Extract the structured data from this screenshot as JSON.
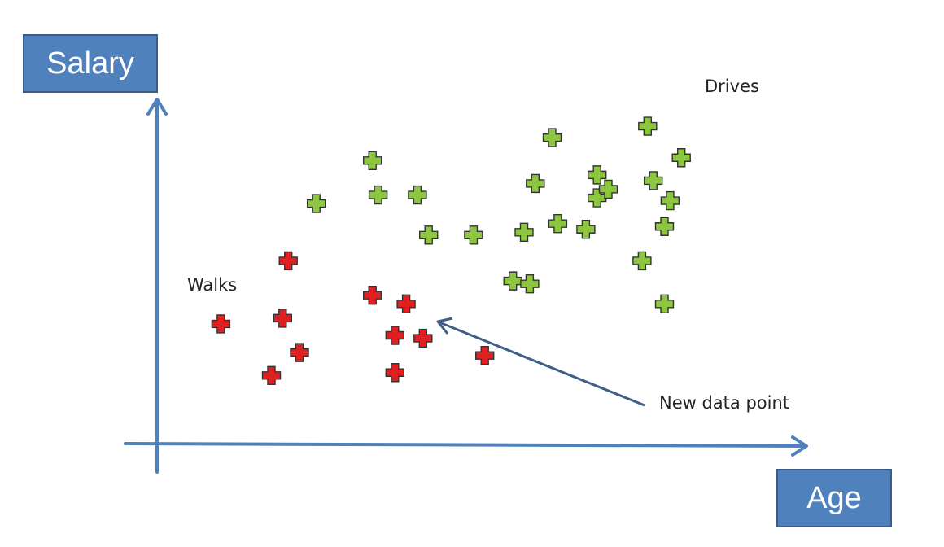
{
  "chart_data": {
    "type": "scatter",
    "xlabel": "Age",
    "ylabel": "Salary",
    "xlim": [
      0,
      100
    ],
    "ylim": [
      0,
      100
    ],
    "grid": false,
    "series": [
      {
        "name": "Drives",
        "color": "#8dc63f",
        "marker": "plus",
        "x": [
          23,
          33,
          34,
          43,
          41,
          51,
          58,
          61,
          62,
          60,
          66,
          65,
          73,
          71,
          82,
          75,
          73,
          83,
          85,
          81,
          85,
          88,
          86
        ],
        "y": [
          71,
          86,
          74,
          60,
          74,
          60,
          44,
          43,
          78,
          61,
          64,
          94,
          73,
          62,
          98,
          76,
          81,
          79,
          36,
          51,
          63,
          87,
          72
        ]
      },
      {
        "name": "Walks",
        "color": "#e02020",
        "marker": "plus",
        "x": [
          6,
          18,
          17,
          20,
          15,
          33,
          39,
          37,
          42,
          37,
          53
        ],
        "y": [
          29,
          51,
          31,
          19,
          11,
          39,
          36,
          25,
          24,
          12,
          18
        ]
      }
    ],
    "new_point": {
      "x": 40,
      "y": 36
    },
    "annotations": {
      "drives": "Drives",
      "walks": "Walks",
      "new_point": "New data point"
    }
  },
  "colors": {
    "axis": "#4f81bd",
    "arrow": "#3f5f86"
  }
}
